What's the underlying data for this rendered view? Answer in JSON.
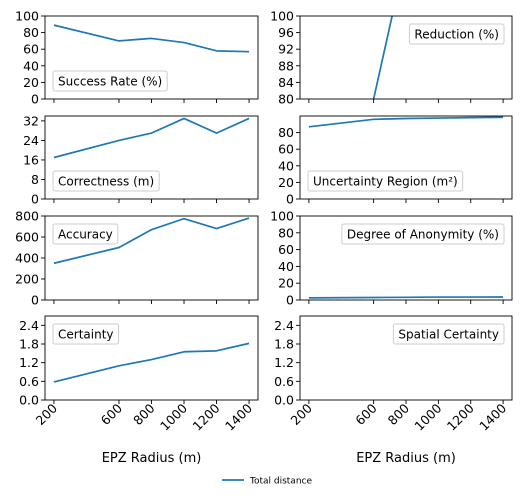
{
  "figure": {
    "legend": {
      "label": "Total distance",
      "placement": "bottom-center"
    },
    "series_color": "#1f77b4"
  },
  "chart_data": [
    {
      "type": "line",
      "label": "Success Rate (%)",
      "label_placement": "bottom-left",
      "x": [
        200,
        600,
        800,
        1000,
        1200,
        1400
      ],
      "y": [
        89,
        70,
        73,
        68,
        58,
        57
      ],
      "ylim": [
        0,
        100
      ],
      "yticks": [
        0,
        20,
        40,
        60,
        80,
        100
      ],
      "ytick_labels": [
        "0",
        "20",
        "40",
        "60",
        "80",
        "100"
      ],
      "xlim": [
        145,
        1455
      ],
      "xticks": [
        200,
        600,
        800,
        1000,
        1200,
        1400
      ],
      "xtick_labels": [],
      "xlabel": "",
      "grid": false
    },
    {
      "type": "line",
      "label": "Reduction (%)",
      "label_placement": "top-right",
      "x": [
        600,
        720
      ],
      "y": [
        80,
        101
      ],
      "ylim": [
        80,
        100
      ],
      "yticks": [
        80,
        84,
        88,
        92,
        96,
        100
      ],
      "ytick_labels": [
        "80",
        "84",
        "88",
        "92",
        "96",
        "100"
      ],
      "xlim": [
        145,
        1455
      ],
      "xticks": [
        200,
        600,
        800,
        1000,
        1200,
        1400
      ],
      "xtick_labels": [],
      "xlabel": "",
      "grid": false
    },
    {
      "type": "line",
      "label": "Correctness (m)",
      "label_placement": "bottom-left",
      "x": [
        200,
        600,
        800,
        1000,
        1200,
        1400
      ],
      "y": [
        17,
        24,
        27,
        33,
        27,
        33
      ],
      "ylim": [
        0,
        34
      ],
      "yticks": [
        0,
        8,
        16,
        24,
        32
      ],
      "ytick_labels": [
        "0",
        "8",
        "16",
        "24",
        "32"
      ],
      "xlim": [
        145,
        1455
      ],
      "xticks": [
        200,
        600,
        800,
        1000,
        1200,
        1400
      ],
      "xtick_labels": [],
      "xlabel": "",
      "grid": false
    },
    {
      "type": "line",
      "label": "Uncertainty Region (m²)",
      "label_placement": "bottom-left",
      "x": [
        200,
        600,
        800,
        1000,
        1200,
        1400
      ],
      "y": [
        87,
        96,
        97,
        97.5,
        98,
        98.5
      ],
      "ylim": [
        0,
        100
      ],
      "yticks": [
        0,
        20,
        40,
        60,
        80
      ],
      "ytick_labels": [
        "0",
        "20",
        "40",
        "60",
        "80"
      ],
      "xlim": [
        145,
        1455
      ],
      "xticks": [
        200,
        600,
        800,
        1000,
        1200,
        1400
      ],
      "xtick_labels": [],
      "xlabel": "",
      "grid": false
    },
    {
      "type": "line",
      "label": "Accuracy",
      "label_placement": "top-left",
      "x": [
        200,
        600,
        800,
        1000,
        1200,
        1400
      ],
      "y": [
        350,
        500,
        670,
        775,
        680,
        780
      ],
      "ylim": [
        0,
        800
      ],
      "yticks": [
        0,
        200,
        400,
        600,
        800
      ],
      "ytick_labels": [
        "0",
        "200",
        "400",
        "600",
        "800"
      ],
      "xlim": [
        145,
        1455
      ],
      "xticks": [
        200,
        600,
        800,
        1000,
        1200,
        1400
      ],
      "xtick_labels": [],
      "xlabel": "",
      "grid": false
    },
    {
      "type": "line",
      "label": "Degree of Anonymity (%)",
      "label_placement": "top-right",
      "x": [
        200,
        600,
        800,
        1000,
        1200,
        1400
      ],
      "y": [
        2.5,
        3,
        3.2,
        3.5,
        3.5,
        3.6
      ],
      "ylim": [
        0,
        100
      ],
      "yticks": [
        0,
        20,
        40,
        60,
        80,
        100
      ],
      "ytick_labels": [
        "0",
        "20",
        "40",
        "60",
        "80",
        "100"
      ],
      "xlim": [
        145,
        1455
      ],
      "xticks": [
        200,
        600,
        800,
        1000,
        1200,
        1400
      ],
      "xtick_labels": [],
      "xlabel": "",
      "grid": false
    },
    {
      "type": "line",
      "label": "Certainty",
      "label_placement": "top-left",
      "x": [
        200,
        600,
        800,
        1000,
        1200,
        1400
      ],
      "y": [
        0.58,
        1.1,
        1.3,
        1.55,
        1.58,
        1.82
      ],
      "ylim": [
        0,
        2.7
      ],
      "yticks": [
        0,
        0.6,
        1.2,
        1.8,
        2.4
      ],
      "ytick_labels": [
        "0.0",
        "0.6",
        "1.2",
        "1.8",
        "2.4"
      ],
      "xlim": [
        145,
        1455
      ],
      "xticks": [
        200,
        600,
        800,
        1000,
        1200,
        1400
      ],
      "xtick_labels": [
        "200",
        "600",
        "800",
        "1000",
        "1200",
        "1400"
      ],
      "xlabel": "EPZ Radius (m)",
      "grid": false
    },
    {
      "type": "line",
      "label": "Spatial Certainty",
      "label_placement": "top-right",
      "x": [],
      "y": [],
      "ylim": [
        0,
        2.7
      ],
      "yticks": [
        0,
        0.6,
        1.2,
        1.8,
        2.4
      ],
      "ytick_labels": [
        "0.0",
        "0.6",
        "1.2",
        "1.8",
        "2.4"
      ],
      "xlim": [
        145,
        1455
      ],
      "xticks": [
        200,
        600,
        800,
        1000,
        1200,
        1400
      ],
      "xtick_labels": [
        "200",
        "600",
        "800",
        "1000",
        "1200",
        "1400"
      ],
      "xlabel": "EPZ Radius (m)",
      "grid": false
    }
  ]
}
